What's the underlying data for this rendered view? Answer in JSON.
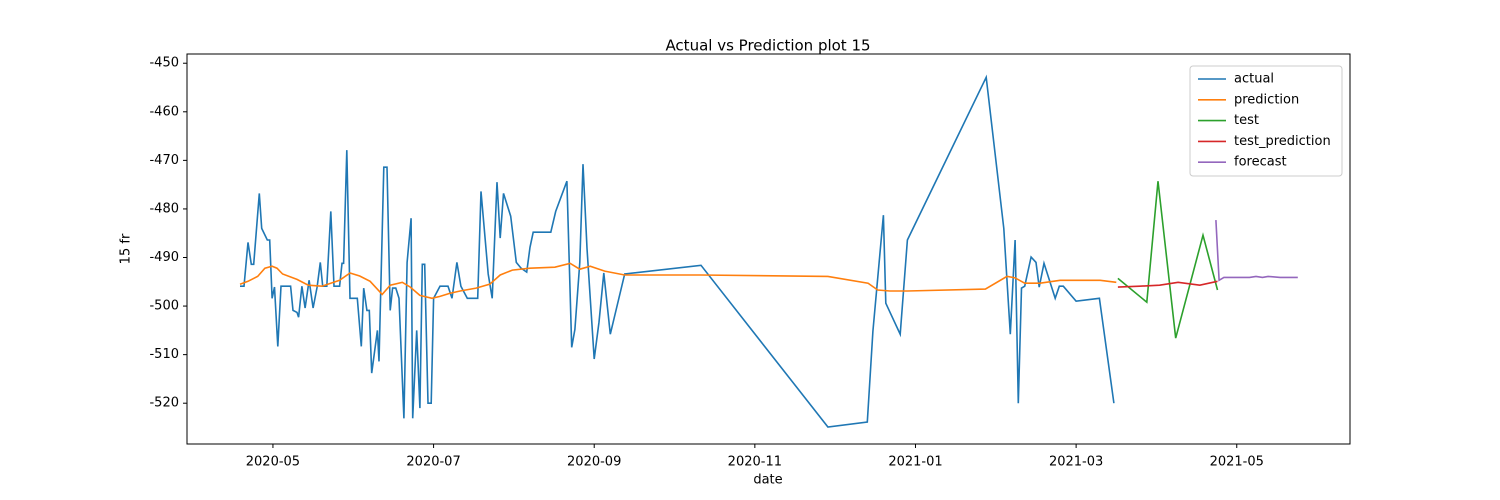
{
  "chart_data": {
    "type": "line",
    "title": "Actual vs Prediction plot 15",
    "xlabel": "date",
    "ylabel": "15 fr",
    "xlim": [
      3.93,
      18.41
    ],
    "ylim": [
      -528.4,
      -448.1
    ],
    "xticks": [
      {
        "value": 5,
        "label": "2020-05"
      },
      {
        "value": 7,
        "label": "2020-07"
      },
      {
        "value": 9,
        "label": "2020-09"
      },
      {
        "value": 11,
        "label": "2020-11"
      },
      {
        "value": 13,
        "label": "2021-01"
      },
      {
        "value": 15,
        "label": "2021-03"
      },
      {
        "value": 17,
        "label": "2021-05"
      }
    ],
    "yticks": [
      -520,
      -510,
      -500,
      -490,
      -480,
      -470,
      -460,
      -450
    ],
    "legend": "upper right",
    "grid": false,
    "series": [
      {
        "name": "actual",
        "color": "#1f77b4",
        "x": [
          4.59,
          4.64,
          4.69,
          4.73,
          4.76,
          4.83,
          4.86,
          4.93,
          4.96,
          4.99,
          5.02,
          5.06,
          5.1,
          5.22,
          5.25,
          5.3,
          5.32,
          5.36,
          5.4,
          5.45,
          5.5,
          5.55,
          5.59,
          5.62,
          5.67,
          5.72,
          5.76,
          5.83,
          5.86,
          5.88,
          5.92,
          5.96,
          6.05,
          6.1,
          6.13,
          6.17,
          6.2,
          6.23,
          6.3,
          6.32,
          6.38,
          6.42,
          6.46,
          6.49,
          6.53,
          6.57,
          6.63,
          6.67,
          6.72,
          6.74,
          6.79,
          6.83,
          6.86,
          6.89,
          6.93,
          6.97,
          7.0,
          7.08,
          7.18,
          7.23,
          7.29,
          7.34,
          7.42,
          7.55,
          7.59,
          7.68,
          7.73,
          7.79,
          7.83,
          7.87,
          7.96,
          8.03,
          8.09,
          8.16,
          8.2,
          8.24,
          8.46,
          8.52,
          8.66,
          8.72,
          8.76,
          8.82,
          8.86,
          8.91,
          9.0,
          9.06,
          9.12,
          9.2,
          9.38,
          10.33,
          11.91,
          12.4,
          12.47,
          12.6,
          12.63,
          12.81,
          12.9,
          13.88,
          14.1,
          14.18,
          14.24,
          14.28,
          14.32,
          14.36,
          14.44,
          14.5,
          14.54,
          14.6,
          14.74,
          14.79,
          14.84,
          15.0,
          15.29,
          15.47
        ],
        "values": [
          -495.9,
          -495.9,
          -486.9,
          -491.4,
          -491.4,
          -476.8,
          -484.0,
          -486.4,
          -486.4,
          -498.4,
          -496.1,
          -508.3,
          -495.9,
          -495.9,
          -500.9,
          -501.3,
          -502.3,
          -495.9,
          -500.4,
          -494.7,
          -500.4,
          -496.1,
          -491.0,
          -495.9,
          -495.9,
          -480.5,
          -495.9,
          -495.9,
          -491.2,
          -491.2,
          -467.9,
          -498.4,
          -498.4,
          -508.3,
          -496.3,
          -500.9,
          -500.9,
          -513.8,
          -505.0,
          -511.4,
          -471.4,
          -471.4,
          -500.9,
          -496.3,
          -496.3,
          -498.4,
          -523.1,
          -491.0,
          -481.9,
          -523.1,
          -505.0,
          -521.0,
          -491.4,
          -491.4,
          -520.0,
          -520.0,
          -498.4,
          -495.9,
          -495.9,
          -498.4,
          -491.0,
          -495.9,
          -498.4,
          -498.4,
          -476.4,
          -493.4,
          -498.4,
          -474.5,
          -486.0,
          -476.8,
          -481.5,
          -491.0,
          -492.2,
          -493.0,
          -487.9,
          -484.8,
          -484.8,
          -480.5,
          -474.3,
          -508.5,
          -504.8,
          -491.0,
          -470.8,
          -488.1,
          -510.9,
          -503.3,
          -493.2,
          -505.8,
          -493.4,
          -491.6,
          -524.9,
          -523.9,
          -505.2,
          -481.3,
          -499.4,
          -505.8,
          -486.4,
          -452.9,
          -484.0,
          -505.8,
          -486.4,
          -520.0,
          -496.3,
          -495.9,
          -489.9,
          -491.0,
          -496.1,
          -491.2,
          -498.4,
          -495.9,
          -495.9,
          -499.0,
          -498.4,
          -520.0
        ]
      },
      {
        "name": "prediction",
        "color": "#ff7f0e",
        "x": [
          4.59,
          4.69,
          4.81,
          4.9,
          4.99,
          5.05,
          5.12,
          5.3,
          5.44,
          5.61,
          5.83,
          5.96,
          6.08,
          6.21,
          6.36,
          6.46,
          6.61,
          6.71,
          6.83,
          6.98,
          7.08,
          7.2,
          7.33,
          7.53,
          7.7,
          7.83,
          7.98,
          8.2,
          8.51,
          8.7,
          8.82,
          8.95,
          9.13,
          9.38,
          10.32,
          11.91,
          12.41,
          12.53,
          12.68,
          12.9,
          13.87,
          14.14,
          14.24,
          14.36,
          14.55,
          14.8,
          15.05,
          15.3,
          15.5
        ],
        "values": [
          -495.5,
          -494.9,
          -493.9,
          -492.2,
          -491.8,
          -492.2,
          -493.4,
          -494.5,
          -495.7,
          -495.9,
          -494.7,
          -493.2,
          -493.8,
          -494.9,
          -497.6,
          -495.7,
          -495.1,
          -496.1,
          -497.8,
          -498.4,
          -498.0,
          -497.4,
          -496.9,
          -496.3,
          -495.5,
          -493.6,
          -492.6,
          -492.2,
          -492.0,
          -491.2,
          -492.4,
          -491.8,
          -492.8,
          -493.6,
          -493.6,
          -493.9,
          -495.3,
          -496.7,
          -496.9,
          -496.9,
          -496.5,
          -493.9,
          -494.2,
          -495.3,
          -495.3,
          -494.7,
          -494.7,
          -494.7,
          -495.1
        ]
      },
      {
        "name": "test",
        "color": "#2ca02c",
        "x": [
          15.52,
          15.88,
          16.02,
          16.24,
          16.58,
          16.76
        ],
        "values": [
          -494.3,
          -499.2,
          -474.3,
          -506.6,
          -485.4,
          -496.7
        ]
      },
      {
        "name": "test_prediction",
        "color": "#d62728",
        "x": [
          15.52,
          15.79,
          16.04,
          16.27,
          16.54,
          16.76
        ],
        "values": [
          -496.1,
          -495.9,
          -495.7,
          -495.1,
          -495.7,
          -494.9
        ]
      },
      {
        "name": "forecast",
        "color": "#9467bd",
        "x": [
          16.74,
          16.78,
          16.84,
          17.16,
          17.24,
          17.32,
          17.39,
          17.54,
          17.76
        ],
        "values": [
          -482.3,
          -494.7,
          -494.1,
          -494.1,
          -493.9,
          -494.1,
          -493.9,
          -494.1,
          -494.1
        ]
      }
    ]
  }
}
